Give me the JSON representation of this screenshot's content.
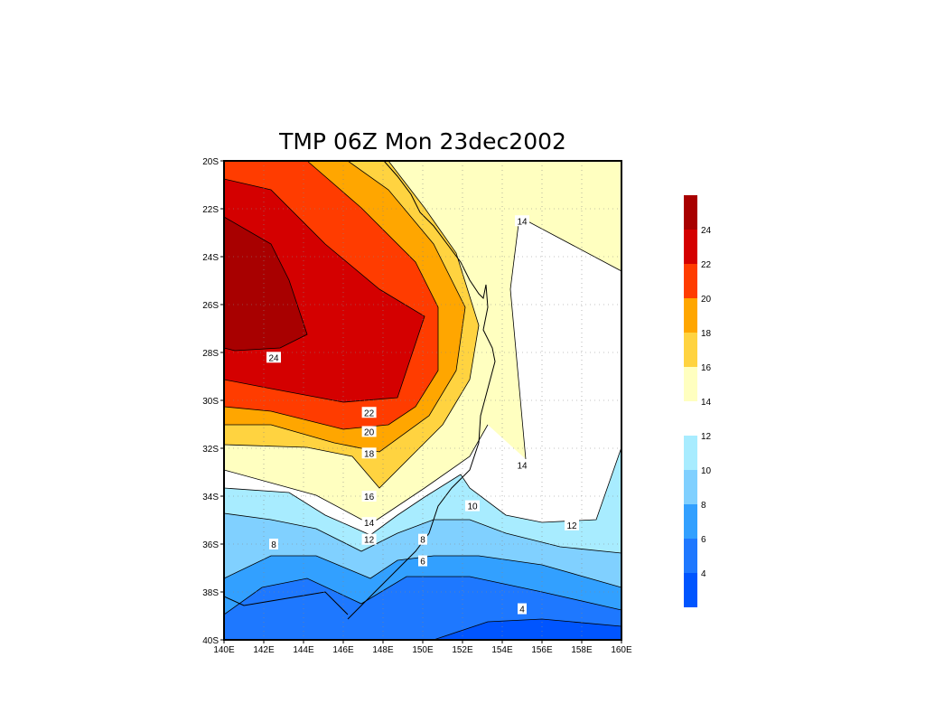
{
  "chart_data": {
    "type": "heatmap",
    "title": "TMP 06Z Mon 23dec2002",
    "x_ticks": [
      "140E",
      "142E",
      "144E",
      "146E",
      "148E",
      "150E",
      "152E",
      "154E",
      "156E",
      "158E",
      "160E"
    ],
    "y_ticks": [
      "20S",
      "22S",
      "24S",
      "26S",
      "28S",
      "30S",
      "32S",
      "34S",
      "36S",
      "38S",
      "40S"
    ],
    "xlim": [
      140,
      160
    ],
    "ylim": [
      -40,
      -20
    ],
    "grid": true,
    "colorbar": {
      "placement": "right",
      "levels": [
        {
          "range": [
            2,
            4
          ],
          "color": "#0055ff"
        },
        {
          "range": [
            4,
            6
          ],
          "color": "#1e78ff"
        },
        {
          "range": [
            6,
            8
          ],
          "color": "#32a0ff"
        },
        {
          "range": [
            8,
            10
          ],
          "color": "#80d0ff"
        },
        {
          "range": [
            10,
            12
          ],
          "color": "#a8ecff"
        },
        {
          "range": [
            12,
            14
          ],
          "color": "#ffffff"
        },
        {
          "range": [
            14,
            16
          ],
          "color": "#ffffc0"
        },
        {
          "range": [
            16,
            18
          ],
          "color": "#ffd340"
        },
        {
          "range": [
            18,
            20
          ],
          "color": "#ffa600"
        },
        {
          "range": [
            20,
            22
          ],
          "color": "#ff3c00"
        },
        {
          "range": [
            22,
            24
          ],
          "color": "#d40000"
        },
        {
          "range": [
            24,
            26
          ],
          "color": "#a80000"
        }
      ],
      "tick_labels": [
        "4",
        "6",
        "8",
        "10",
        "12",
        "14",
        "16",
        "18",
        "20",
        "22",
        "24"
      ]
    },
    "contour_labels": [
      {
        "text": "14",
        "lon": 155.0,
        "lat": -22.5
      },
      {
        "text": "24",
        "lon": 142.5,
        "lat": -28.2
      },
      {
        "text": "22",
        "lon": 147.3,
        "lat": -30.5
      },
      {
        "text": "20",
        "lon": 147.3,
        "lat": -31.3
      },
      {
        "text": "18",
        "lon": 147.3,
        "lat": -32.2
      },
      {
        "text": "14",
        "lon": 155.0,
        "lat": -32.7
      },
      {
        "text": "16",
        "lon": 147.3,
        "lat": -34.0
      },
      {
        "text": "10",
        "lon": 152.5,
        "lat": -34.4
      },
      {
        "text": "14",
        "lon": 147.3,
        "lat": -35.1
      },
      {
        "text": "12",
        "lon": 157.5,
        "lat": -35.2
      },
      {
        "text": "8",
        "lon": 150.0,
        "lat": -35.8
      },
      {
        "text": "12",
        "lon": 147.3,
        "lat": -35.8
      },
      {
        "text": "8",
        "lon": 142.5,
        "lat": -36.0
      },
      {
        "text": "6",
        "lon": 150.0,
        "lat": -36.7
      },
      {
        "text": "4",
        "lon": 155.0,
        "lat": -38.7
      }
    ]
  }
}
